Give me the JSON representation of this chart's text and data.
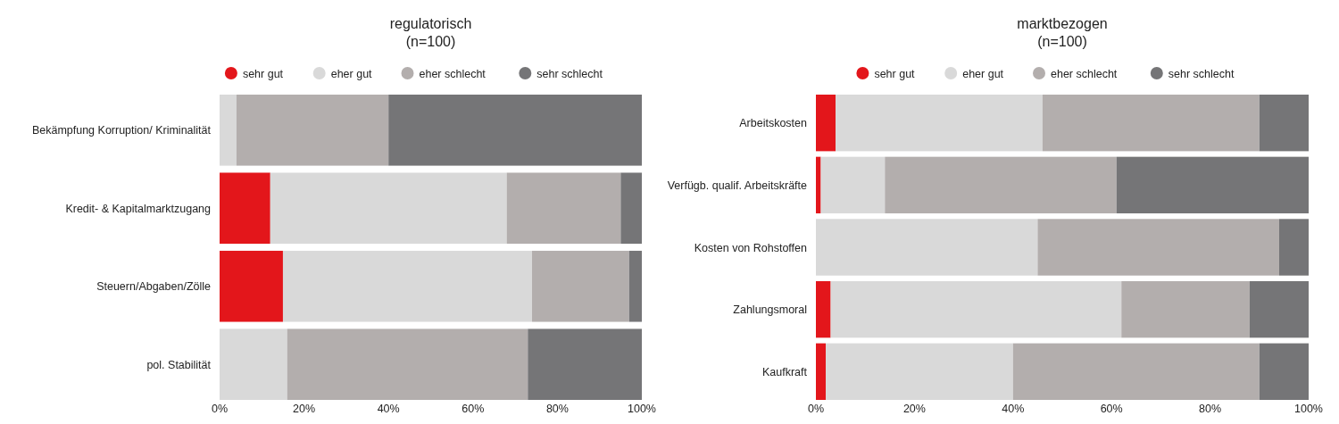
{
  "chart_data": [
    {
      "type": "bar",
      "title": "regulatorisch",
      "subtitle": "(n=100)",
      "orientation": "horizontal",
      "stacked": true,
      "legend": "top",
      "categories": [
        "Bekämpfung Korruption/ Kriminalität",
        "Kredit- & Kapitalmarktzugang",
        "Steuern/Abgaben/Zölle",
        "pol. Stabilität"
      ],
      "series": [
        {
          "name": "sehr gut",
          "color": "#e3161b",
          "values": [
            0,
            12,
            15,
            0
          ]
        },
        {
          "name": "eher gut",
          "color": "#d9d9d9",
          "values": [
            4,
            56,
            59,
            16
          ]
        },
        {
          "name": "eher schlecht",
          "color": "#b3aead",
          "values": [
            36,
            27,
            23,
            57
          ]
        },
        {
          "name": "sehr schlecht",
          "color": "#757577",
          "values": [
            60,
            5,
            3,
            27
          ]
        }
      ],
      "xlim": [
        0,
        100
      ],
      "xticks": [
        {
          "value": 0,
          "label": "0%"
        },
        {
          "value": 20,
          "label": "20%"
        },
        {
          "value": 40,
          "label": "40%"
        },
        {
          "value": 60,
          "label": "60%"
        },
        {
          "value": 80,
          "label": "80%"
        },
        {
          "value": 100,
          "label": "100%"
        }
      ]
    },
    {
      "type": "bar",
      "title": "marktbezogen",
      "subtitle": "(n=100)",
      "orientation": "horizontal",
      "stacked": true,
      "legend": "top",
      "categories": [
        "Arbeitskosten",
        "Verfügb. qualif. Arbeitskräfte",
        "Kosten von Rohstoffen",
        "Zahlungsmoral",
        "Kaufkraft"
      ],
      "series": [
        {
          "name": "sehr gut",
          "color": "#e3161b",
          "values": [
            4,
            1,
            0,
            3,
            2
          ]
        },
        {
          "name": "eher gut",
          "color": "#d9d9d9",
          "values": [
            42,
            13,
            45,
            59,
            38
          ]
        },
        {
          "name": "eher schlecht",
          "color": "#b3aead",
          "values": [
            44,
            47,
            49,
            26,
            50
          ]
        },
        {
          "name": "sehr schlecht",
          "color": "#757577",
          "values": [
            10,
            39,
            6,
            12,
            10
          ]
        }
      ],
      "xlim": [
        0,
        100
      ],
      "xticks": [
        {
          "value": 0,
          "label": "0%"
        },
        {
          "value": 20,
          "label": "20%"
        },
        {
          "value": 40,
          "label": "40%"
        },
        {
          "value": 60,
          "label": "60%"
        },
        {
          "value": 80,
          "label": "80%"
        },
        {
          "value": 100,
          "label": "100%"
        }
      ]
    }
  ]
}
